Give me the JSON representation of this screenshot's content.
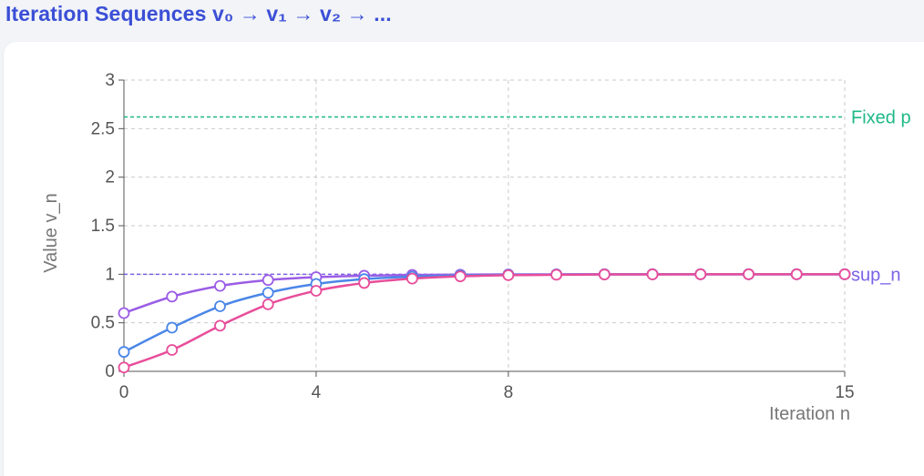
{
  "header": {
    "title": "Iteration Sequences v₀ → v₁ → v₂ → ..."
  },
  "chart_data": {
    "type": "line",
    "xlabel": "Iteration n",
    "ylabel": "Value v_n",
    "xlim": [
      0,
      15
    ],
    "ylim": [
      0,
      3
    ],
    "x_ticks": [
      0,
      4,
      8,
      15
    ],
    "y_ticks": [
      0,
      0.5,
      1,
      1.5,
      2,
      2.5,
      3
    ],
    "y_tick_labels": [
      "0",
      "0.5",
      "1",
      "1.5",
      "2",
      "2.5",
      "3"
    ],
    "grid": true,
    "x": [
      0,
      1,
      2,
      3,
      4,
      5,
      6,
      7,
      8,
      9,
      10,
      11,
      12,
      13,
      14,
      15
    ],
    "series": [
      {
        "color": "#9b5de5",
        "values": [
          0.6,
          0.77,
          0.88,
          0.94,
          0.97,
          0.985,
          0.993,
          0.996,
          0.998,
          0.999,
          1.0,
          1.0,
          1.0,
          1.0,
          1.0,
          1.0
        ]
      },
      {
        "color": "#4a86e8",
        "values": [
          0.2,
          0.45,
          0.67,
          0.81,
          0.9,
          0.95,
          0.975,
          0.988,
          0.994,
          0.997,
          0.999,
          1.0,
          1.0,
          1.0,
          1.0,
          1.0
        ]
      },
      {
        "color": "#e84d9a",
        "values": [
          0.04,
          0.22,
          0.47,
          0.69,
          0.83,
          0.91,
          0.955,
          0.978,
          0.99,
          0.995,
          0.998,
          0.999,
          1.0,
          1.0,
          1.0,
          1.0
        ]
      }
    ],
    "reference_lines": [
      {
        "label": "Fixed p",
        "y": 2.62,
        "color": "#1fb887"
      },
      {
        "label": "sup_n",
        "y": 1.0,
        "color": "#7b61e8"
      }
    ]
  }
}
